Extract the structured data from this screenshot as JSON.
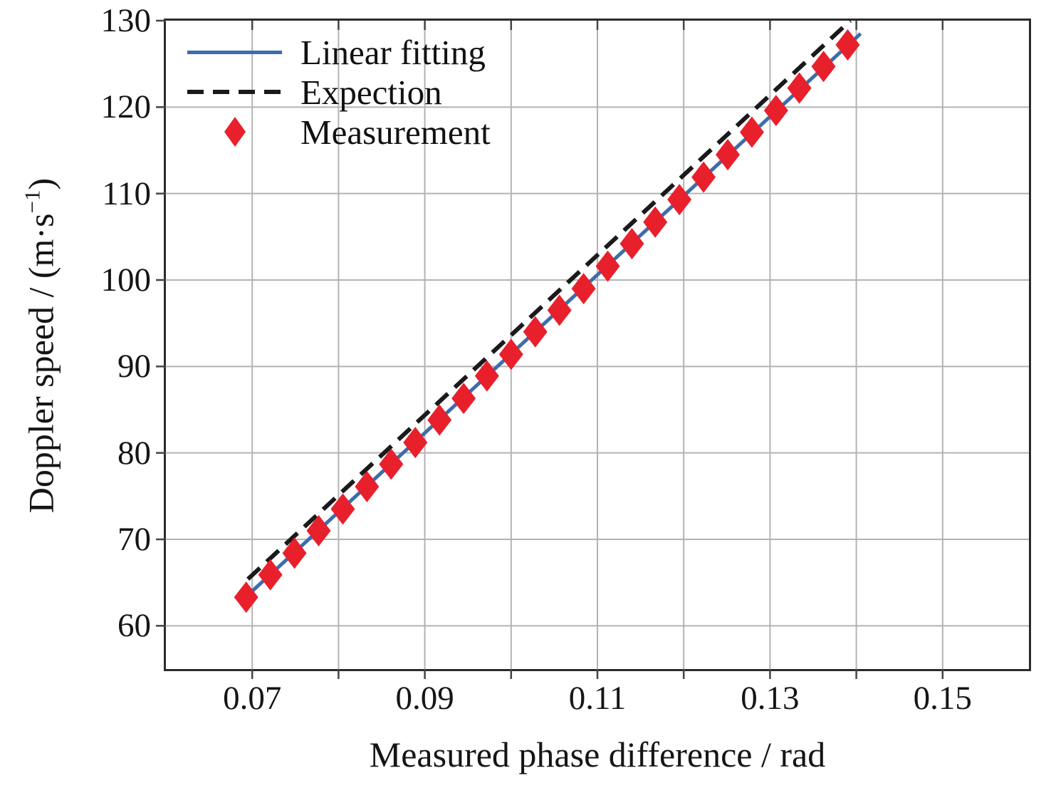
{
  "chart_data": {
    "type": "scatter",
    "title": "",
    "xlabel": "Measured phase difference / rad",
    "ylabel": "Doppler speed / (m·s−1)",
    "ylabel_parts": {
      "prefix": "Doppler speed / (m·s",
      "sup": "−1",
      "suffix": ")"
    },
    "xlim": [
      0.06,
      0.16
    ],
    "ylim": [
      55,
      130
    ],
    "grid_on": true,
    "x_tick_values": [
      0.07,
      0.09,
      0.11,
      0.13,
      0.15
    ],
    "x_tick_labels": [
      "0.07",
      "0.09",
      "0.11",
      "0.13",
      "0.15"
    ],
    "y_tick_values": [
      60,
      70,
      80,
      90,
      100,
      110,
      120,
      130
    ],
    "y_tick_labels": [
      "60",
      "70",
      "80",
      "90",
      "100",
      "110",
      "120",
      "130"
    ],
    "x_gridline_values": [
      0.07,
      0.08,
      0.09,
      0.1,
      0.11,
      0.12,
      0.13,
      0.14,
      0.15
    ],
    "y_gridline_values": [
      60,
      70,
      80,
      90,
      100,
      110,
      120
    ],
    "colors": {
      "grid": "#b3b3b3",
      "axis": "#2b2b2b",
      "tick": "#444444"
    },
    "legend": {
      "position": "top-left"
    },
    "series": [
      {
        "name": "Linear fitting",
        "kind": "line",
        "color": "#3b6dad",
        "points": [
          [
            0.069,
            63.1
          ],
          [
            0.1405,
            128.5
          ]
        ]
      },
      {
        "name": "Expection",
        "kind": "dashed-line",
        "color": "#1a1a1a",
        "points": [
          [
            0.0695,
            65.4
          ],
          [
            0.1393,
            130.0
          ]
        ]
      },
      {
        "name": "Measurement",
        "kind": "scatter",
        "marker": "diamond",
        "color": "#e8202c",
        "points": [
          [
            0.0693,
            63.3
          ],
          [
            0.0721,
            65.9
          ],
          [
            0.0749,
            68.4
          ],
          [
            0.0777,
            71.0
          ],
          [
            0.0805,
            73.5
          ],
          [
            0.0833,
            76.1
          ],
          [
            0.0861,
            78.7
          ],
          [
            0.0889,
            81.2
          ],
          [
            0.0917,
            83.8
          ],
          [
            0.0945,
            86.3
          ],
          [
            0.0972,
            88.9
          ],
          [
            0.1,
            91.4
          ],
          [
            0.1028,
            94.0
          ],
          [
            0.1056,
            96.5
          ],
          [
            0.1084,
            99.0
          ],
          [
            0.1112,
            101.6
          ],
          [
            0.114,
            104.2
          ],
          [
            0.1167,
            106.7
          ],
          [
            0.1195,
            109.3
          ],
          [
            0.1223,
            111.9
          ],
          [
            0.1251,
            114.5
          ],
          [
            0.1279,
            117.1
          ],
          [
            0.1307,
            119.6
          ],
          [
            0.1334,
            122.2
          ],
          [
            0.1362,
            124.7
          ],
          [
            0.139,
            127.2
          ]
        ]
      }
    ]
  }
}
